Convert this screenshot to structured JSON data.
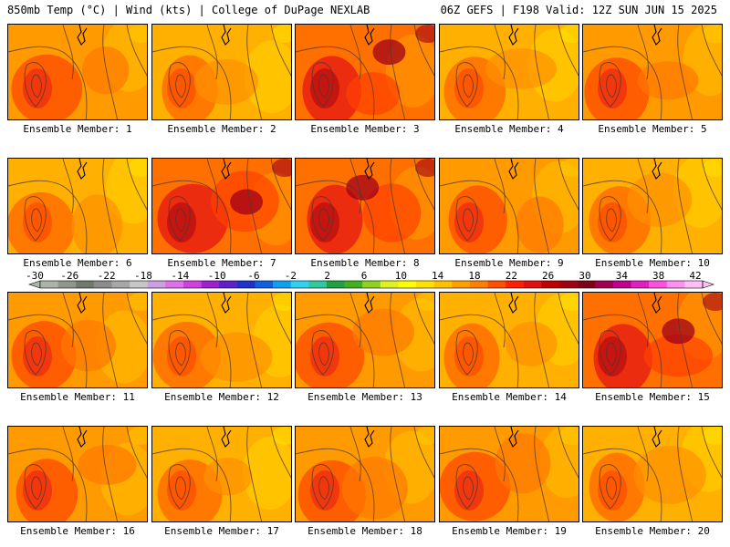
{
  "header": {
    "left_title": "850mb Temp (°C) | Wind (kts) | College of DuPage NEXLAB",
    "right_title": "06Z GEFS | F198 Valid: 12Z SUN JUN 15 2025"
  },
  "members": [
    {
      "label": "Ensemble Member: 1",
      "variant": 0
    },
    {
      "label": "Ensemble Member: 2",
      "variant": 1
    },
    {
      "label": "Ensemble Member: 3",
      "variant": 2
    },
    {
      "label": "Ensemble Member: 4",
      "variant": 1
    },
    {
      "label": "Ensemble Member: 5",
      "variant": 0
    },
    {
      "label": "Ensemble Member: 6",
      "variant": 1
    },
    {
      "label": "Ensemble Member: 7",
      "variant": 2
    },
    {
      "label": "Ensemble Member: 8",
      "variant": 2
    },
    {
      "label": "Ensemble Member: 9",
      "variant": 0
    },
    {
      "label": "Ensemble Member: 10",
      "variant": 1
    },
    {
      "label": "Ensemble Member: 11",
      "variant": 0
    },
    {
      "label": "Ensemble Member: 12",
      "variant": 1
    },
    {
      "label": "Ensemble Member: 13",
      "variant": 0
    },
    {
      "label": "Ensemble Member: 14",
      "variant": 1
    },
    {
      "label": "Ensemble Member: 15",
      "variant": 2
    },
    {
      "label": "Ensemble Member: 16",
      "variant": 0
    },
    {
      "label": "Ensemble Member: 17",
      "variant": 1
    },
    {
      "label": "Ensemble Member: 18",
      "variant": 0
    },
    {
      "label": "Ensemble Member: 19",
      "variant": 0
    },
    {
      "label": "Ensemble Member: 20",
      "variant": 1
    }
  ],
  "legend": {
    "tick_labels": [
      "-30",
      "-26",
      "-22",
      "-18",
      "-14",
      "-10",
      "-6",
      "-2",
      "2",
      "6",
      "10",
      "14",
      "18",
      "22",
      "26",
      "30",
      "34",
      "38",
      "42"
    ],
    "colors": [
      "#aab4a8",
      "#8f968d",
      "#73786f",
      "#8c8c8c",
      "#a7a7a7",
      "#c6c6c6",
      "#cca0e0",
      "#e070e8",
      "#d040e0",
      "#a020d0",
      "#6020c8",
      "#2030c8",
      "#1060e0",
      "#10a0f0",
      "#30d0f0",
      "#30c8a0",
      "#20a040",
      "#40b020",
      "#90d020",
      "#e0f020",
      "#ffff00",
      "#ffe000",
      "#ffc000",
      "#ffa000",
      "#ff8000",
      "#ff5000",
      "#ff2000",
      "#e01010",
      "#c00000",
      "#a00010",
      "#800018",
      "#a00050",
      "#c00090",
      "#e020c0",
      "#ff50e0",
      "#ff90f0",
      "#ffc0f8"
    ]
  }
}
